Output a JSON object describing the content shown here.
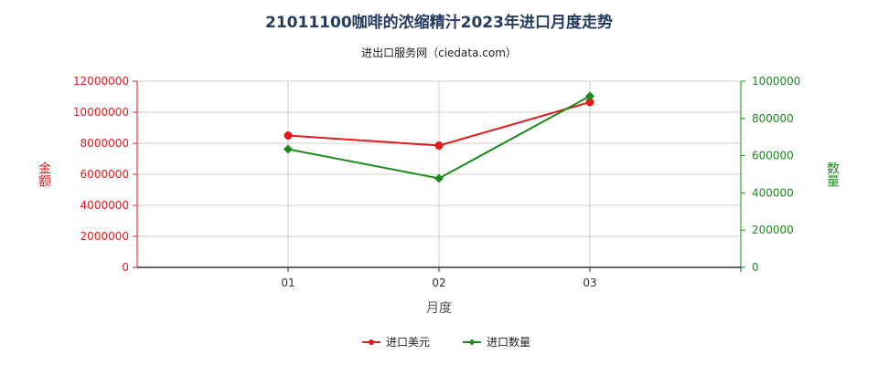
{
  "header": {
    "title": "21011100咖啡的浓缩精汁2023年进口月度走势",
    "subtitle": "进出口服务网（ciedata.com）"
  },
  "colors": {
    "left_axis": "#e31a1c",
    "right_axis": "#1a8a1a",
    "grid": "#cccccc",
    "title": "#243b63"
  },
  "chart_data": {
    "type": "line",
    "categories": [
      "01",
      "02",
      "03"
    ],
    "xlabel": "月度",
    "ylabel_left": "金额",
    "ylabel_right": "数量",
    "ylim_left": [
      0,
      12000000
    ],
    "ylim_right": [
      0,
      1000000
    ],
    "yticks_left": [
      0,
      2000000,
      4000000,
      6000000,
      8000000,
      10000000,
      12000000
    ],
    "yticks_right": [
      0,
      200000,
      400000,
      600000,
      800000,
      1000000
    ],
    "grid": true,
    "legend_position": "bottom-center",
    "series": [
      {
        "name": "进口美元",
        "axis": "left",
        "color": "#e31a1c",
        "marker": "circle",
        "values": [
          8500000,
          7850000,
          10650000
        ]
      },
      {
        "name": "进口数量",
        "axis": "right",
        "color": "#1a8a1a",
        "marker": "diamond",
        "values": [
          635000,
          478000,
          920000
        ]
      }
    ]
  }
}
